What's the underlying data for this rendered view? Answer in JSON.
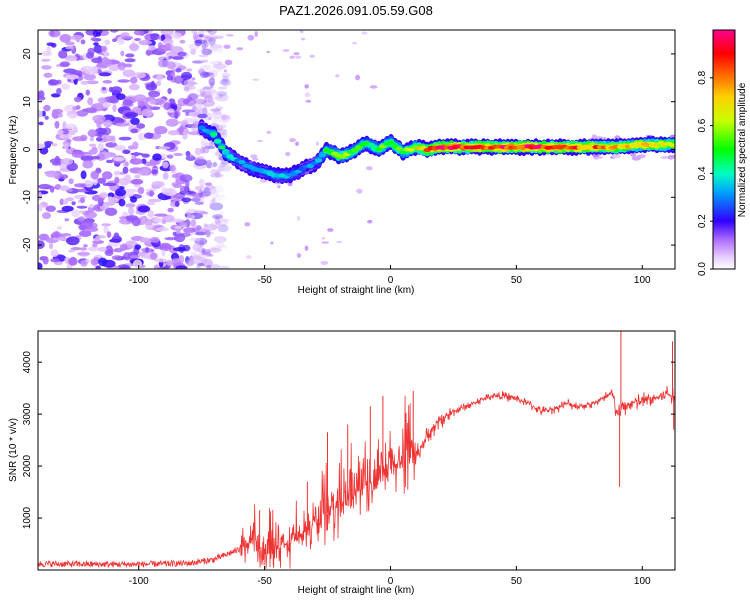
{
  "colors": {
    "background": "#ffffff",
    "snr_line": "#ee3333",
    "colorbar_stops": [
      "#ffffff",
      "#ddb0ff",
      "#8a2be2",
      "#0000ff",
      "#00d8ff",
      "#00ff00",
      "#ffff00",
      "#ff8000",
      "#ff0000",
      "#ff00a0"
    ]
  },
  "chart_data": [
    {
      "type": "heatmap",
      "title": "PAZ1.2026.091.05.59.G08",
      "xlabel": "Height of straight line (km)",
      "ylabel": "Frequency (Hz)",
      "xlim": [
        -140,
        113
      ],
      "ylim": [
        -25,
        25
      ],
      "xticks": [
        -100,
        -50,
        0,
        50,
        100
      ],
      "xtick_labels": [
        "-100",
        "-50",
        "0",
        "50",
        "100"
      ],
      "yticks": [
        -20,
        -10,
        0,
        10,
        20
      ],
      "ytick_labels": [
        "-20",
        "-10",
        "0",
        "10",
        "20"
      ],
      "colorbar": {
        "label": "Normalized spectral amplitude",
        "range": [
          0,
          1
        ],
        "ticks": [
          0.0,
          0.2,
          0.4,
          0.6,
          0.8
        ],
        "tick_labels": [
          "0.0",
          "0.2",
          "0.4",
          "0.6",
          "0.8"
        ]
      },
      "ridge": {
        "height_km": [
          -75,
          -70,
          -65,
          -60,
          -55,
          -50,
          -45,
          -40,
          -35,
          -30,
          -25,
          -20,
          -15,
          -10,
          -5,
          0,
          5,
          10,
          15,
          20,
          30,
          40,
          50,
          60,
          70,
          80,
          90,
          100,
          113
        ],
        "frequency_hz": [
          4.5,
          3,
          -1,
          -2.5,
          -4,
          -4.5,
          -5.5,
          -5.5,
          -4,
          -3,
          0,
          -1.5,
          -0.5,
          1.5,
          0,
          1.5,
          -0.5,
          0.5,
          0,
          0.5,
          0.5,
          0.5,
          0.5,
          0.5,
          0.5,
          0.5,
          0.5,
          1,
          1
        ],
        "amplitude": [
          0.3,
          0.4,
          0.4,
          0.3,
          0.3,
          0.35,
          0.4,
          0.35,
          0.3,
          0.3,
          0.45,
          0.6,
          0.55,
          0.45,
          0.5,
          0.55,
          0.5,
          0.6,
          0.8,
          0.9,
          0.85,
          0.85,
          0.9,
          0.9,
          0.85,
          0.8,
          0.7,
          0.75,
          0.6
        ]
      },
      "noise_region_km": [
        -140,
        -75
      ]
    },
    {
      "type": "line",
      "xlabel": "Height of straight line (km)",
      "ylabel": "SNR (10 * v/v)",
      "xlim": [
        -140,
        113
      ],
      "ylim": [
        0,
        4600
      ],
      "xticks": [
        -100,
        -50,
        0,
        50,
        100
      ],
      "xtick_labels": [
        "-100",
        "-50",
        "0",
        "50",
        "100"
      ],
      "yticks": [
        1000,
        2000,
        3000,
        4000
      ],
      "ytick_labels": [
        "1000",
        "2000",
        "3000",
        "4000"
      ],
      "series": [
        {
          "name": "SNR",
          "x": [
            -140,
            -120,
            -100,
            -80,
            -70,
            -60,
            -55,
            -50,
            -45,
            -40,
            -35,
            -30,
            -25,
            -20,
            -15,
            -10,
            -5,
            0,
            5,
            10,
            15,
            20,
            25,
            30,
            35,
            40,
            45,
            50,
            55,
            60,
            65,
            70,
            75,
            80,
            85,
            88,
            90,
            92,
            95,
            100,
            105,
            110,
            113
          ],
          "y": [
            120,
            110,
            110,
            130,
            200,
            400,
            550,
            300,
            450,
            500,
            700,
            900,
            1100,
            1300,
            1400,
            1700,
            1700,
            2000,
            2100,
            2200,
            2600,
            2900,
            3050,
            3150,
            3250,
            3350,
            3350,
            3300,
            3200,
            3050,
            3100,
            3200,
            3150,
            3200,
            3300,
            3400,
            3000,
            3100,
            3200,
            3250,
            3300,
            3400,
            3300
          ],
          "spikes": [
            {
              "x": -52,
              "y": 1150
            },
            {
              "x": -33,
              "y": 1700
            },
            {
              "x": -25,
              "y": 2650
            },
            {
              "x": -17,
              "y": 2800
            },
            {
              "x": -8,
              "y": 3150
            },
            {
              "x": -3,
              "y": 3350
            },
            {
              "x": 9,
              "y": 3450
            },
            {
              "x": 91,
              "y": 1600
            },
            {
              "x": 91.5,
              "y": 4650
            },
            {
              "x": 112,
              "y": 4400
            },
            {
              "x": 112.5,
              "y": 2700
            }
          ]
        }
      ]
    }
  ]
}
